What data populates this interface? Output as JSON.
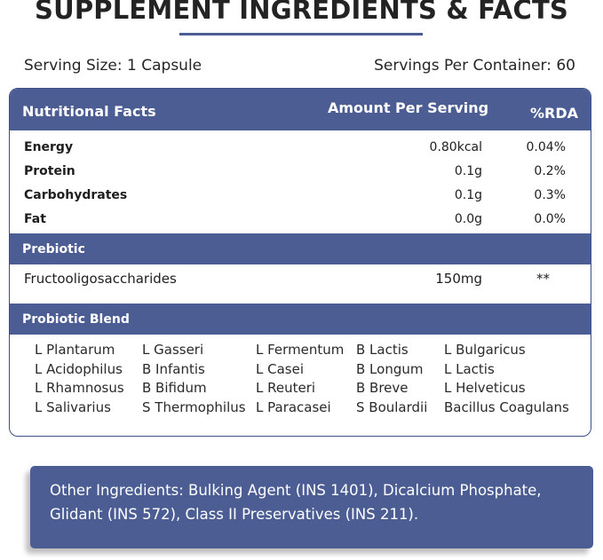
{
  "title": "SUPPLEMENT INGREDIENTS & FACTS",
  "serving_size": "Serving Size: 1 Capsule",
  "servings_per_container": "Servings Per Container: 60",
  "header": {
    "col_name": "Nutritional Facts",
    "col_amount": "Amount Per Serving",
    "col_rda": "%RDA"
  },
  "nutrients": [
    {
      "name": "Energy",
      "amount": "0.80kcal",
      "rda": "0.04%"
    },
    {
      "name": "Protein",
      "amount": "0.1g",
      "rda": "0.2%"
    },
    {
      "name": "Carbohydrates",
      "amount": "0.1g",
      "rda": "0.3%"
    },
    {
      "name": "Fat",
      "amount": "0.0g",
      "rda": "0.0%"
    }
  ],
  "prebiotic": {
    "section_label": "Prebiotic",
    "name": "Fructooligosaccharides",
    "amount": "150mg",
    "rda": "**"
  },
  "probiotic": {
    "section_label": "Probiotic Blend",
    "columns": [
      [
        "L Plantarum",
        "L Acidophilus",
        "L Rhamnosus",
        "L Salivarius"
      ],
      [
        "L Gasseri",
        "B Infantis",
        "B Bifidum",
        "S Thermophilus"
      ],
      [
        "L Fermentum",
        "L Casei",
        "L Reuteri",
        "L Paracasei"
      ],
      [
        "B Lactis",
        "B Longum",
        "B Breve",
        "S Boulardii"
      ],
      [
        "L Bulgaricus",
        "L Lactis",
        "L Helveticus",
        "Bacillus Coagulans"
      ]
    ]
  },
  "other_ingredients": {
    "line1": "Other Ingredients: Bulking Agent (INS 1401), Dicalcium Phosphate,",
    "line2": "Glidant (INS 572), Class II Preservatives (INS 211)."
  },
  "colors": {
    "accent": "#4b5d93",
    "text": "#1e1e1e"
  }
}
